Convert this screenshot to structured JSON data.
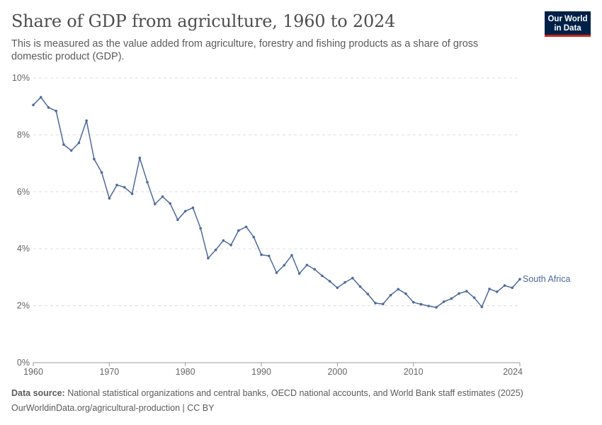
{
  "header": {
    "title": "Share of GDP from agriculture, 1960 to 2024",
    "subtitle": "This is measured as the value added from agriculture, forestry and fishing products as a share of gross domestic product (GDP)."
  },
  "logo": {
    "line1": "Our World",
    "line2": "in Data",
    "bg_color": "#002147",
    "accent_color": "#ce261e"
  },
  "footer": {
    "source_label": "Data source:",
    "source_text": " National statistical organizations and central banks, OECD national accounts, and World Bank staff estimates (2025)",
    "url_text": "OurWorldinData.org/agricultural-production | CC BY"
  },
  "chart_data": {
    "type": "line",
    "title": "Share of GDP from agriculture, 1960 to 2024",
    "xlabel": "",
    "ylabel": "",
    "xlim": [
      1960,
      2024
    ],
    "ylim": [
      0,
      10
    ],
    "x_ticks": [
      1960,
      1970,
      1980,
      1990,
      2000,
      2010,
      2024
    ],
    "y_ticks": [
      0,
      2,
      4,
      6,
      8,
      10
    ],
    "y_tick_labels": [
      "0%",
      "2%",
      "4%",
      "6%",
      "8%",
      "10%"
    ],
    "grid": true,
    "series": [
      {
        "name": "South Africa",
        "color": "#4c6a9c",
        "x": [
          1960,
          1961,
          1962,
          1963,
          1964,
          1965,
          1966,
          1967,
          1968,
          1969,
          1970,
          1971,
          1972,
          1973,
          1974,
          1975,
          1976,
          1977,
          1978,
          1979,
          1980,
          1981,
          1982,
          1983,
          1984,
          1985,
          1986,
          1987,
          1988,
          1989,
          1990,
          1991,
          1992,
          1993,
          1994,
          1995,
          1996,
          1997,
          1998,
          1999,
          2000,
          2001,
          2002,
          2003,
          2004,
          2005,
          2006,
          2007,
          2008,
          2009,
          2010,
          2011,
          2012,
          2013,
          2014,
          2015,
          2016,
          2017,
          2018,
          2019,
          2020,
          2021,
          2022,
          2023,
          2024
        ],
        "values": [
          9.05,
          9.32,
          8.96,
          8.84,
          7.66,
          7.45,
          7.72,
          8.5,
          7.15,
          6.68,
          5.77,
          6.24,
          6.16,
          5.93,
          7.19,
          6.34,
          5.57,
          5.83,
          5.59,
          5.02,
          5.32,
          5.44,
          4.72,
          3.67,
          3.96,
          4.29,
          4.13,
          4.64,
          4.77,
          4.41,
          3.79,
          3.75,
          3.16,
          3.42,
          3.77,
          3.13,
          3.43,
          3.28,
          3.05,
          2.86,
          2.63,
          2.82,
          2.97,
          2.67,
          2.41,
          2.09,
          2.06,
          2.37,
          2.58,
          2.42,
          2.12,
          2.05,
          1.99,
          1.94,
          2.14,
          2.25,
          2.43,
          2.51,
          2.28,
          1.96,
          2.59,
          2.49,
          2.71,
          2.63,
          2.93
        ]
      }
    ]
  }
}
